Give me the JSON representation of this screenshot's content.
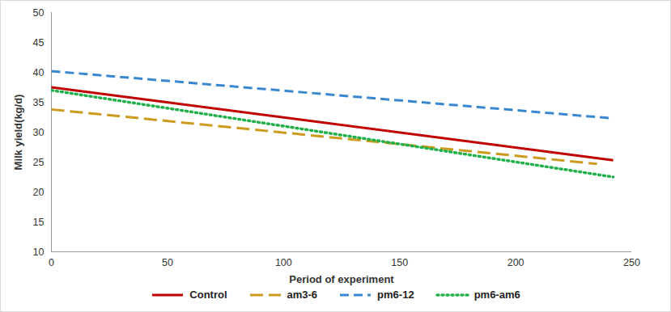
{
  "chart_data": {
    "type": "line",
    "x_label": "Period of experiment",
    "y_label": "Milk yield(kg/d)",
    "xlim": [
      0,
      250
    ],
    "xticks": [
      0,
      50,
      100,
      150,
      200,
      250
    ],
    "ylim": [
      10,
      50
    ],
    "yticks": [
      10,
      15,
      20,
      25,
      30,
      35,
      40,
      45,
      50
    ],
    "grid": false,
    "legend": "bottom",
    "series": [
      {
        "name": "Control",
        "color": "#c00000",
        "line_style": "solid",
        "x": [
          0,
          242
        ],
        "values": [
          37.5,
          25.3
        ]
      },
      {
        "name": "am3-6",
        "color": "#cc9a1c",
        "line_style": "longdash",
        "x": [
          0,
          235
        ],
        "values": [
          33.8,
          24.7
        ]
      },
      {
        "name": "pm6-12",
        "color": "#3a87d1",
        "line_style": "dashed",
        "x": [
          0,
          242
        ],
        "values": [
          40.2,
          32.3
        ]
      },
      {
        "name": "pm6-am6",
        "color": "#22b04a",
        "line_style": "dotted",
        "x": [
          0,
          242
        ],
        "values": [
          37.0,
          22.5
        ]
      }
    ]
  }
}
